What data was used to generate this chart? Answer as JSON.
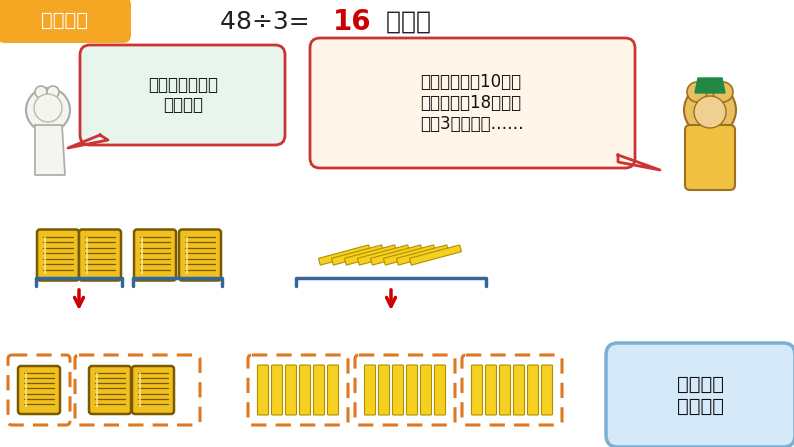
{
  "bg_color": "#FFFFFF",
  "header_bg": "#F5A623",
  "header_text": "探究新知",
  "header_text_color": "#FFFFFF",
  "title_black": "48÷3= ",
  "title_red": "16",
  "title_suffix": " （枝）",
  "bubble1_text": "用小棒摆一摆，\n算一算。",
  "bubble1_border": "#CC3333",
  "bubble1_bg": "#E8F5ED",
  "bubble2_text": "先每个花瓶插10枝，\n再把剩下的18枝平均\n插到3个花瓶中……",
  "bubble2_border": "#CC3333",
  "bubble2_bg": "#FFF5E8",
  "answer_box_text": "用竖式怎\n样计算？",
  "answer_box_border": "#7BAFD4",
  "answer_box_bg": "#D6E9F8",
  "bracket_color": "#336699",
  "arrow_color": "#CC0000",
  "bundle_yellow": "#F0C020",
  "bundle_dark": "#7A5A00",
  "bundle_shadow": "#C09000",
  "stick_yellow": "#F5D020",
  "stick_border": "#B09000",
  "dashed_border": "#E07820",
  "dashed_border2": "#E07820"
}
